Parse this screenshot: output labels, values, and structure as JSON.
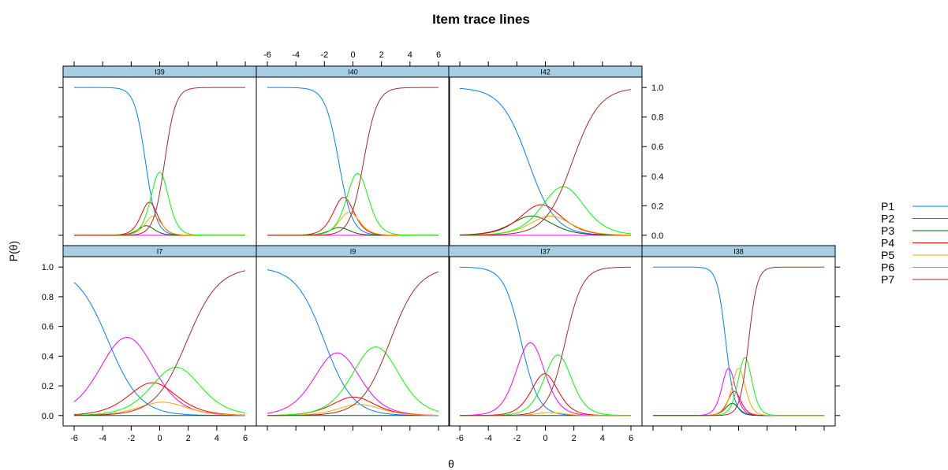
{
  "chart_data": {
    "type": "line",
    "title": "Item trace lines",
    "xlabel": "θ",
    "ylabel": "P(θ)",
    "xlim": [
      -6,
      6
    ],
    "ylim": [
      0,
      1
    ],
    "x_ticks": [
      "-6",
      "-4",
      "-2",
      "0",
      "2",
      "4",
      "6"
    ],
    "y_ticks": [
      "0.0",
      "0.2",
      "0.4",
      "0.6",
      "0.8",
      "1.0"
    ],
    "legend_position": "right",
    "series": [
      {
        "name": "P1",
        "color": "#0080ff"
      },
      {
        "name": "P2",
        "color": "#ff00ff"
      },
      {
        "name": "P3",
        "color": "#006400"
      },
      {
        "name": "P4",
        "color": "#ff0000"
      },
      {
        "name": "P5",
        "color": "#ffa500"
      },
      {
        "name": "P6",
        "color": "#00ff00"
      },
      {
        "name": "P7",
        "color": "#a52a2a"
      }
    ],
    "panels": [
      {
        "name": "I39",
        "a": 2.6,
        "thresholds": [
          -1.0,
          -1.3,
          -0.9,
          -0.55,
          -0.35,
          0.35
        ]
      },
      {
        "name": "I40",
        "a": 2.1,
        "thresholds": [
          -1.0,
          -1.1,
          -0.9,
          -0.4,
          -0.1,
          0.75
        ]
      },
      {
        "name": "I42",
        "a": 1.05,
        "thresholds": [
          -1.2,
          -1.2,
          -0.7,
          0.1,
          0.6,
          1.9
        ]
      },
      {
        "name": "I7",
        "a": 0.9,
        "thresholds": [
          -3.6,
          -1.0,
          -1.0,
          0.0,
          0.4,
          1.9
        ]
      },
      {
        "name": "I9",
        "a": 1.0,
        "thresholds": [
          -2.0,
          -0.2,
          -0.6,
          0.3,
          0.6,
          2.6
        ]
      },
      {
        "name": "I37",
        "a": 1.65,
        "thresholds": [
          -1.7,
          -0.4,
          -0.5,
          0.3,
          0.35,
          1.4
        ]
      },
      {
        "name": "I38",
        "a": 3.3,
        "thresholds": [
          -0.9,
          -0.5,
          -0.4,
          -0.2,
          0.2,
          0.7
        ]
      }
    ]
  }
}
